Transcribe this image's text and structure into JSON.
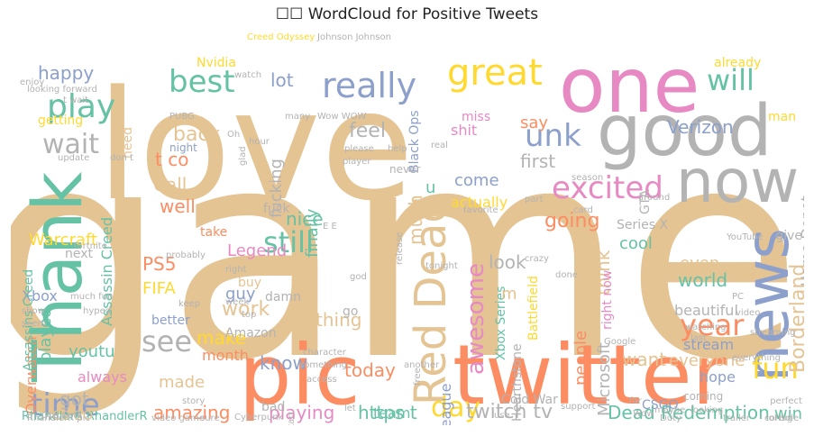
{
  "title": "☐☐ WordCloud for Positive Tweets",
  "palette": [
    "#e5c494",
    "#fc8d62",
    "#66c2a5",
    "#8da0cb",
    "#e78ac3",
    "#a6d854",
    "#ffd92f",
    "#b3b3b3"
  ],
  "words": [
    {
      "text": "game",
      "color": "#e5c494"
    },
    {
      "text": "love",
      "color": "#e5c494"
    },
    {
      "text": "pic",
      "color": "#fc8d62"
    },
    {
      "text": "twitter",
      "color": "#fc8d62"
    },
    {
      "text": "one",
      "color": "#e78ac3"
    },
    {
      "text": "good",
      "color": "#b3b3b3"
    },
    {
      "text": "now",
      "color": "#b3b3b3"
    },
    {
      "text": "Thank",
      "color": "#66c2a5"
    },
    {
      "text": "news",
      "color": "#8da0cb"
    },
    {
      "text": "Red Dead",
      "color": "#e5c494"
    },
    {
      "text": "great",
      "color": "#ffd92f"
    },
    {
      "text": "really",
      "color": "#8da0cb"
    },
    {
      "text": "play",
      "color": "#66c2a5"
    },
    {
      "text": "best",
      "color": "#66c2a5"
    },
    {
      "text": "will",
      "color": "#66c2a5"
    },
    {
      "text": "unk",
      "color": "#8da0cb"
    },
    {
      "text": "wait",
      "color": "#b3b3b3"
    },
    {
      "text": "excited",
      "color": "#e78ac3"
    },
    {
      "text": "time",
      "color": "#8da0cb"
    },
    {
      "text": "see",
      "color": "#b3b3b3"
    },
    {
      "text": "still",
      "color": "#66c2a5"
    },
    {
      "text": "year",
      "color": "#fc8d62"
    },
    {
      "text": "fun",
      "color": "#ffd92f"
    },
    {
      "text": "day",
      "color": "#ffd92f"
    },
    {
      "text": "Borderland",
      "color": "#e5c494"
    },
    {
      "text": "awesome",
      "color": "#e78ac3"
    },
    {
      "text": "Dead Redemption",
      "color": "#66c2a5"
    },
    {
      "text": "twitch tv",
      "color": "#b3b3b3"
    },
    {
      "text": "happy",
      "color": "#8da0cb"
    },
    {
      "text": "lot",
      "color": "#8da0cb"
    },
    {
      "text": "back",
      "color": "#e5c494"
    },
    {
      "text": "t co",
      "color": "#fc8d62"
    },
    {
      "text": "Call",
      "color": "#e5c494"
    },
    {
      "text": "well",
      "color": "#fc8d62"
    },
    {
      "text": "feel",
      "color": "#b3b3b3"
    },
    {
      "text": "fucking",
      "color": "#b3b3b3"
    },
    {
      "text": "finally",
      "color": "#66c2a5"
    },
    {
      "text": "nice",
      "color": "#66c2a5"
    },
    {
      "text": "first",
      "color": "#b3b3b3"
    },
    {
      "text": "going",
      "color": "#fc8d62"
    },
    {
      "text": "much",
      "color": "#e5c494"
    },
    {
      "text": "Verizon",
      "color": "#8da0cb"
    },
    {
      "text": "Home Depot",
      "color": "#b3b3b3"
    },
    {
      "text": "say",
      "color": "#fc8d62"
    },
    {
      "text": "come",
      "color": "#8da0cb"
    },
    {
      "text": "actually",
      "color": "#ffd92f"
    },
    {
      "text": "look",
      "color": "#b3b3b3"
    },
    {
      "text": "think",
      "color": "#e5c494"
    },
    {
      "text": "cool",
      "color": "#66c2a5"
    },
    {
      "text": "even",
      "color": "#e5c494"
    },
    {
      "text": "world",
      "color": "#66c2a5"
    },
    {
      "text": "work",
      "color": "#e5c494"
    },
    {
      "text": "make",
      "color": "#ffd92f"
    },
    {
      "text": "PS5",
      "color": "#fc8d62"
    },
    {
      "text": "FIFA",
      "color": "#ffd92f"
    },
    {
      "text": "guy",
      "color": "#8da0cb"
    },
    {
      "text": "thing",
      "color": "#e5c494"
    },
    {
      "text": "Legend",
      "color": "#e78ac3"
    },
    {
      "text": "played",
      "color": "#66c2a5"
    },
    {
      "text": "Assassin Creed",
      "color": "#66c2a5"
    },
    {
      "text": "Warcraft",
      "color": "#ffd92f"
    },
    {
      "text": "Xbox",
      "color": "#8da0cb"
    },
    {
      "text": "know",
      "color": "#8da0cb"
    },
    {
      "text": "made",
      "color": "#e5c494"
    },
    {
      "text": "today",
      "color": "#fc8d62"
    },
    {
      "text": "amazing",
      "color": "#fc8d62"
    },
    {
      "text": "got",
      "color": "#b3b3b3"
    },
    {
      "text": "playing",
      "color": "#e78ac3"
    },
    {
      "text": "https t",
      "color": "#66c2a5"
    },
    {
      "text": "want",
      "color": "#e5c494"
    },
    {
      "text": "everyone",
      "color": "#e5c494"
    },
    {
      "text": "people",
      "color": "#fc8d62"
    },
    {
      "text": "Microsoft",
      "color": "#b3b3b3"
    },
    {
      "text": "stream",
      "color": "#8da0cb"
    },
    {
      "text": "hope",
      "color": "#8da0cb"
    },
    {
      "text": "Overwatch",
      "color": "#fc8d62"
    },
    {
      "text": "youtu",
      "color": "#66c2a5"
    },
    {
      "text": "always",
      "color": "#e78ac3"
    },
    {
      "text": "Series X",
      "color": "#b3b3b3"
    },
    {
      "text": "CSGO",
      "color": "#8da0cb"
    },
    {
      "text": "League",
      "color": "#8da0cb"
    },
    {
      "text": "Battlefield",
      "color": "#ffd92f"
    },
    {
      "text": "Hearthstone",
      "color": "#b3b3b3"
    },
    {
      "text": "Xbox Series",
      "color": "#66c2a5"
    },
    {
      "text": "beautiful",
      "color": "#b3b3b3"
    },
    {
      "text": "right now",
      "color": "#e78ac3"
    },
    {
      "text": "win",
      "color": "#66c2a5"
    },
    {
      "text": "Cold War",
      "color": "#b3b3b3"
    },
    {
      "text": "team",
      "color": "#66c2a5"
    },
    {
      "text": "month",
      "color": "#fc8d62"
    },
    {
      "text": "better",
      "color": "#8da0cb"
    },
    {
      "text": "Amazon",
      "color": "#b3b3b3"
    },
    {
      "text": "bad",
      "color": "#b3b3b3"
    },
    {
      "text": "RhandlerR RhandlerR",
      "color": "#66c2a5"
    },
    {
      "text": "CS GO",
      "color": "#e5c494"
    },
    {
      "text": "Assassins Creed",
      "color": "#66c2a5"
    },
    {
      "text": "getting",
      "color": "#ffd92f"
    },
    {
      "text": "Nvidia",
      "color": "#ffd92f"
    },
    {
      "text": "need",
      "color": "#e5c494"
    },
    {
      "text": "shit",
      "color": "#e78ac3"
    },
    {
      "text": "miss",
      "color": "#e78ac3"
    },
    {
      "text": "Black Ops",
      "color": "#8da0cb"
    },
    {
      "text": "fuck",
      "color": "#b3b3b3"
    },
    {
      "text": "take",
      "color": "#fc8d62"
    },
    {
      "text": "next",
      "color": "#b3b3b3"
    },
    {
      "text": "buy",
      "color": "#e5c494"
    },
    {
      "text": "damn",
      "color": "#b3b3b3"
    },
    {
      "text": "live",
      "color": "#a6d854"
    },
    {
      "text": "coming",
      "color": "#b3b3b3"
    },
    {
      "text": "give",
      "color": "#b3b3b3"
    },
    {
      "text": "man",
      "color": "#ffd92f"
    },
    {
      "text": "already",
      "color": "#ffd92f"
    },
    {
      "text": "GTA",
      "color": "#b3b3b3"
    },
    {
      "text": "night",
      "color": "#8da0cb"
    },
    {
      "text": "never",
      "color": "#b3b3b3"
    },
    {
      "text": "go",
      "color": "#b3b3b3"
    },
    {
      "text": "m",
      "color": "#e5c494"
    },
    {
      "text": "u",
      "color": "#66c2a5"
    },
    {
      "text": "Creed Odyssey",
      "color": "#ffd92f"
    },
    {
      "text": "Johnson Johnson",
      "color": "#b3b3b3"
    },
    {
      "text": "looking forward",
      "color": "#b3b3b3"
    },
    {
      "text": "fortnite",
      "color": "#b3b3b3"
    },
    {
      "text": "Cyberpunk",
      "color": "#b3b3b3"
    },
    {
      "text": "video game",
      "color": "#b3b3b3"
    },
    {
      "text": "streaming",
      "color": "#b3b3b3"
    },
    {
      "text": "YouTube",
      "color": "#b3b3b3"
    },
    {
      "text": "trailer",
      "color": "#b3b3b3"
    },
    {
      "text": "console",
      "color": "#b3b3b3"
    },
    {
      "text": "perfect",
      "color": "#b3b3b3"
    },
    {
      "text": "video",
      "color": "#b3b3b3"
    },
    {
      "text": "everything",
      "color": "#b3b3b3"
    },
    {
      "text": "character",
      "color": "#b3b3b3"
    },
    {
      "text": "something",
      "color": "#b3b3b3"
    },
    {
      "text": "crazy",
      "color": "#b3b3b3"
    },
    {
      "text": "tonight",
      "color": "#b3b3b3"
    },
    {
      "text": "probably",
      "color": "#b3b3b3"
    },
    {
      "text": "favorite",
      "color": "#b3b3b3"
    },
    {
      "text": "support",
      "color": "#b3b3b3"
    },
    {
      "text": "another",
      "color": "#b3b3b3"
    },
    {
      "text": "hyped",
      "color": "#b3b3b3"
    },
    {
      "text": "enjoy",
      "color": "#b3b3b3"
    },
    {
      "text": "update",
      "color": "#b3b3b3"
    },
    {
      "text": "release",
      "color": "#b3b3b3"
    },
    {
      "text": "please",
      "color": "#b3b3b3"
    },
    {
      "text": "player",
      "color": "#b3b3b3"
    },
    {
      "text": "watching",
      "color": "#b3b3b3"
    },
    {
      "text": "looking",
      "color": "#b3b3b3"
    },
    {
      "text": "maybe",
      "color": "#b3b3b3"
    },
    {
      "text": "story",
      "color": "#b3b3b3"
    },
    {
      "text": "sure",
      "color": "#b3b3b3"
    },
    {
      "text": "season",
      "color": "#b3b3b3"
    },
    {
      "text": "PUBG",
      "color": "#b3b3b3"
    },
    {
      "text": "Wow WOW",
      "color": "#b3b3b3"
    },
    {
      "text": "watch",
      "color": "#b3b3b3"
    },
    {
      "text": "real",
      "color": "#b3b3b3"
    },
    {
      "text": "glad",
      "color": "#b3b3b3"
    },
    {
      "text": "help",
      "color": "#b3b3b3"
    },
    {
      "text": "many",
      "color": "#b3b3b3"
    },
    {
      "text": "around",
      "color": "#b3b3b3"
    },
    {
      "text": "keep",
      "color": "#b3b3b3"
    },
    {
      "text": "right",
      "color": "#b3b3b3"
    },
    {
      "text": "week",
      "color": "#b3b3b3"
    },
    {
      "text": "top",
      "color": "#b3b3b3"
    },
    {
      "text": "god",
      "color": "#b3b3b3"
    },
    {
      "text": "done",
      "color": "#b3b3b3"
    },
    {
      "text": "part",
      "color": "#b3b3b3"
    },
    {
      "text": "card",
      "color": "#b3b3b3"
    },
    {
      "text": "access",
      "color": "#b3b3b3"
    },
    {
      "text": "free",
      "color": "#b3b3b3"
    },
    {
      "text": "start",
      "color": "#b3b3b3"
    },
    {
      "text": "use",
      "color": "#b3b3b3"
    },
    {
      "text": "far",
      "color": "#b3b3b3"
    },
    {
      "text": "lol",
      "color": "#b3b3b3"
    },
    {
      "text": "big",
      "color": "#b3b3b3"
    },
    {
      "text": "let",
      "color": "#b3b3b3"
    },
    {
      "text": "Duty",
      "color": "#b3b3b3"
    },
    {
      "text": "Wow",
      "color": "#b3b3b3"
    },
    {
      "text": "last",
      "color": "#b3b3b3"
    },
    {
      "text": "show",
      "color": "#b3b3b3"
    },
    {
      "text": "seem",
      "color": "#b3b3b3"
    },
    {
      "text": "much fun",
      "color": "#b3b3b3"
    },
    {
      "text": "Ops Cold",
      "color": "#b3b3b3"
    },
    {
      "text": "RhandlerR pic",
      "color": "#b3b3b3"
    },
    {
      "text": "Google",
      "color": "#b3b3b3"
    },
    {
      "text": "PC",
      "color": "#b3b3b3"
    },
    {
      "text": "don t",
      "color": "#b3b3b3"
    },
    {
      "text": "t wait",
      "color": "#b3b3b3"
    },
    {
      "text": "Oh",
      "color": "#b3b3b3"
    },
    {
      "text": "hour",
      "color": "#b3b3b3"
    },
    {
      "text": "E E",
      "color": "#b3b3b3"
    }
  ]
}
